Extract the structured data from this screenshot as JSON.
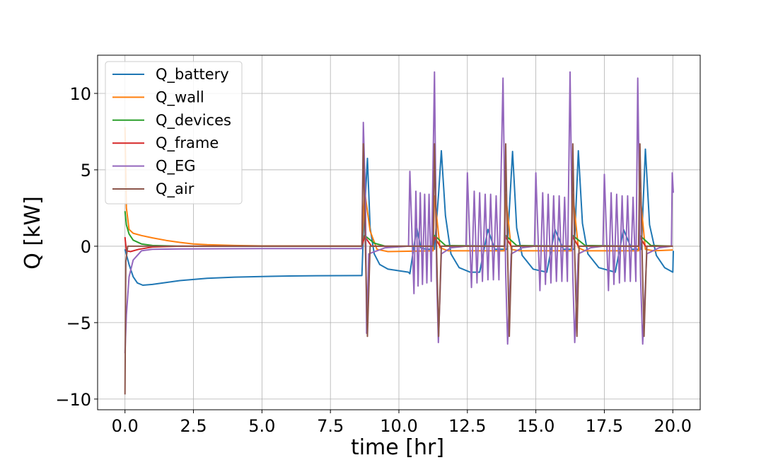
{
  "chart_data": {
    "type": "line",
    "title": "",
    "xlabel": "time [hr]",
    "ylabel": "Q [kW]",
    "xlim": [
      -1.0,
      21.0
    ],
    "ylim": [
      -10.7,
      12.5
    ],
    "xticks": [
      0.0,
      2.5,
      5.0,
      7.5,
      10.0,
      12.5,
      15.0,
      17.5,
      20.0
    ],
    "xtick_labels": [
      "0.0",
      "2.5",
      "5.0",
      "7.5",
      "10.0",
      "12.5",
      "15.0",
      "17.5",
      "20.0"
    ],
    "yticks": [
      -10,
      -5,
      0,
      5,
      10
    ],
    "ytick_labels": [
      "−10",
      "−5",
      "0",
      "5",
      "10"
    ],
    "grid": true,
    "legend_position": "top-left",
    "series": [
      {
        "name": "Q_battery",
        "color": "#1f77b4",
        "points": [
          [
            0.0,
            -0.2
          ],
          [
            0.15,
            -1.2
          ],
          [
            0.3,
            -2.0
          ],
          [
            0.45,
            -2.4
          ],
          [
            0.65,
            -2.55
          ],
          [
            1.0,
            -2.5
          ],
          [
            2.0,
            -2.25
          ],
          [
            3.0,
            -2.1
          ],
          [
            4.0,
            -2.02
          ],
          [
            5.0,
            -1.98
          ],
          [
            6.0,
            -1.95
          ],
          [
            7.0,
            -1.93
          ],
          [
            8.65,
            -1.92
          ],
          [
            8.7,
            0.8
          ],
          [
            8.85,
            5.75
          ],
          [
            8.95,
            1.2
          ],
          [
            9.1,
            -0.5
          ],
          [
            9.3,
            -1.2
          ],
          [
            9.6,
            -1.5
          ],
          [
            10.35,
            -1.7
          ],
          [
            10.4,
            -1.8
          ],
          [
            10.65,
            1.2
          ],
          [
            10.8,
            -0.1
          ],
          [
            11.0,
            -0.2
          ],
          [
            11.3,
            -0.2
          ],
          [
            11.45,
            3.5
          ],
          [
            11.55,
            6.25
          ],
          [
            11.7,
            2.0
          ],
          [
            11.9,
            -0.5
          ],
          [
            12.2,
            -1.4
          ],
          [
            12.6,
            -1.7
          ],
          [
            12.95,
            -1.7
          ],
          [
            13.25,
            1.1
          ],
          [
            13.5,
            -0.2
          ],
          [
            13.95,
            -0.2
          ],
          [
            14.15,
            6.2
          ],
          [
            14.3,
            1.2
          ],
          [
            14.5,
            -0.6
          ],
          [
            14.9,
            -1.5
          ],
          [
            15.4,
            -1.7
          ],
          [
            15.7,
            1.1
          ],
          [
            16.0,
            -0.2
          ],
          [
            16.4,
            -0.2
          ],
          [
            16.55,
            6.25
          ],
          [
            16.7,
            1.5
          ],
          [
            16.9,
            -0.5
          ],
          [
            17.3,
            -1.4
          ],
          [
            17.9,
            -1.7
          ],
          [
            18.2,
            1.1
          ],
          [
            18.5,
            -0.2
          ],
          [
            18.85,
            -0.2
          ],
          [
            19.0,
            6.35
          ],
          [
            19.15,
            1.4
          ],
          [
            19.4,
            -0.6
          ],
          [
            19.7,
            -1.4
          ],
          [
            20.0,
            -1.7
          ],
          [
            20.02,
            -0.3
          ]
        ]
      },
      {
        "name": "Q_wall",
        "color": "#ff7f0e",
        "points": [
          [
            0.0,
            7.8
          ],
          [
            0.05,
            2.5
          ],
          [
            0.15,
            1.1
          ],
          [
            0.3,
            0.85
          ],
          [
            0.6,
            0.7
          ],
          [
            1.0,
            0.55
          ],
          [
            1.5,
            0.38
          ],
          [
            2.0,
            0.25
          ],
          [
            2.5,
            0.15
          ],
          [
            3.0,
            0.1
          ],
          [
            4.0,
            0.05
          ],
          [
            5.0,
            0.02
          ],
          [
            8.65,
            0.0
          ],
          [
            8.75,
            3.6
          ],
          [
            8.95,
            1.0
          ],
          [
            9.2,
            -0.2
          ],
          [
            9.6,
            -0.35
          ],
          [
            11.25,
            -0.3
          ],
          [
            11.3,
            3.3
          ],
          [
            11.5,
            -0.1
          ],
          [
            11.8,
            -0.3
          ],
          [
            13.85,
            -0.3
          ],
          [
            13.9,
            3.4
          ],
          [
            14.1,
            -0.2
          ],
          [
            14.4,
            -0.3
          ],
          [
            16.3,
            -0.3
          ],
          [
            16.35,
            3.4
          ],
          [
            16.55,
            -0.1
          ],
          [
            16.8,
            -0.3
          ],
          [
            18.75,
            -0.3
          ],
          [
            18.8,
            3.5
          ],
          [
            19.0,
            -0.2
          ],
          [
            19.3,
            -0.3
          ],
          [
            20.0,
            -0.25
          ]
        ]
      },
      {
        "name": "Q_devices",
        "color": "#2ca02c",
        "points": [
          [
            0.0,
            2.3
          ],
          [
            0.05,
            1.4
          ],
          [
            0.15,
            0.8
          ],
          [
            0.3,
            0.4
          ],
          [
            0.6,
            0.15
          ],
          [
            1.0,
            0.05
          ],
          [
            2.0,
            0.0
          ],
          [
            8.65,
            0.0
          ],
          [
            8.75,
            0.7
          ],
          [
            9.1,
            0.2
          ],
          [
            9.5,
            0.0
          ],
          [
            11.25,
            0.0
          ],
          [
            11.3,
            0.7
          ],
          [
            11.7,
            0.05
          ],
          [
            13.85,
            0.0
          ],
          [
            13.9,
            0.7
          ],
          [
            14.3,
            0.05
          ],
          [
            16.3,
            0.0
          ],
          [
            16.35,
            0.7
          ],
          [
            16.8,
            0.05
          ],
          [
            18.75,
            0.0
          ],
          [
            18.8,
            0.7
          ],
          [
            19.2,
            0.05
          ],
          [
            20.0,
            0.0
          ]
        ]
      },
      {
        "name": "Q_frame",
        "color": "#d62728",
        "points": [
          [
            0.0,
            0.6
          ],
          [
            0.05,
            -0.3
          ],
          [
            0.2,
            -0.35
          ],
          [
            0.5,
            -0.2
          ],
          [
            1.0,
            -0.05
          ],
          [
            2.0,
            0.0
          ],
          [
            8.65,
            0.0
          ],
          [
            8.75,
            0.65
          ],
          [
            9.0,
            0.0
          ],
          [
            11.25,
            0.0
          ],
          [
            11.3,
            0.6
          ],
          [
            11.5,
            0.0
          ],
          [
            13.85,
            0.0
          ],
          [
            13.9,
            0.6
          ],
          [
            14.1,
            0.0
          ],
          [
            16.3,
            0.0
          ],
          [
            16.35,
            0.6
          ],
          [
            16.55,
            0.0
          ],
          [
            18.75,
            0.0
          ],
          [
            18.8,
            0.6
          ],
          [
            19.0,
            0.0
          ],
          [
            20.0,
            0.0
          ]
        ]
      },
      {
        "name": "Q_EG",
        "color": "#9467bd",
        "points": [
          [
            0.0,
            -7.0
          ],
          [
            0.05,
            -4.5
          ],
          [
            0.15,
            -2.0
          ],
          [
            0.3,
            -0.9
          ],
          [
            0.6,
            -0.3
          ],
          [
            1.0,
            -0.2
          ],
          [
            2.0,
            -0.18
          ],
          [
            5.0,
            -0.15
          ],
          [
            8.65,
            -0.15
          ],
          [
            8.7,
            8.1
          ],
          [
            8.78,
            3.0
          ],
          [
            8.82,
            -5.7
          ],
          [
            8.9,
            -0.5
          ],
          [
            9.5,
            -0.1
          ],
          [
            10.35,
            0.0
          ],
          [
            10.4,
            4.9
          ],
          [
            10.55,
            -3.1
          ],
          [
            10.62,
            3.6
          ],
          [
            10.7,
            -2.6
          ],
          [
            10.78,
            3.5
          ],
          [
            10.86,
            -2.5
          ],
          [
            10.94,
            3.4
          ],
          [
            11.02,
            -2.4
          ],
          [
            11.1,
            3.4
          ],
          [
            11.18,
            -2.3
          ],
          [
            11.3,
            11.4
          ],
          [
            11.38,
            -2.0
          ],
          [
            11.44,
            -6.3
          ],
          [
            11.55,
            -0.5
          ],
          [
            11.9,
            -0.1
          ],
          [
            12.45,
            0.0
          ],
          [
            12.5,
            4.8
          ],
          [
            12.65,
            -2.7
          ],
          [
            12.75,
            3.6
          ],
          [
            12.85,
            -2.4
          ],
          [
            12.95,
            3.5
          ],
          [
            13.05,
            -2.3
          ],
          [
            13.15,
            3.4
          ],
          [
            13.25,
            -2.2
          ],
          [
            13.35,
            3.4
          ],
          [
            13.45,
            -2.2
          ],
          [
            13.55,
            3.3
          ],
          [
            13.65,
            -2.2
          ],
          [
            13.8,
            11.0
          ],
          [
            13.9,
            -1.8
          ],
          [
            13.97,
            -6.4
          ],
          [
            14.1,
            -0.5
          ],
          [
            14.5,
            -0.1
          ],
          [
            14.95,
            0.0
          ],
          [
            15.0,
            4.8
          ],
          [
            15.15,
            -2.9
          ],
          [
            15.25,
            3.5
          ],
          [
            15.35,
            -2.5
          ],
          [
            15.45,
            3.4
          ],
          [
            15.55,
            -2.4
          ],
          [
            15.65,
            3.3
          ],
          [
            15.75,
            -2.3
          ],
          [
            15.85,
            3.3
          ],
          [
            15.95,
            -2.3
          ],
          [
            16.05,
            3.2
          ],
          [
            16.15,
            -2.3
          ],
          [
            16.25,
            11.4
          ],
          [
            16.35,
            -2.0
          ],
          [
            16.42,
            -6.3
          ],
          [
            16.55,
            -0.5
          ],
          [
            17.0,
            -0.1
          ],
          [
            17.45,
            0.0
          ],
          [
            17.5,
            4.7
          ],
          [
            17.65,
            -2.9
          ],
          [
            17.75,
            3.5
          ],
          [
            17.85,
            -2.5
          ],
          [
            17.95,
            3.4
          ],
          [
            18.05,
            -2.4
          ],
          [
            18.15,
            3.3
          ],
          [
            18.25,
            -2.3
          ],
          [
            18.35,
            3.3
          ],
          [
            18.45,
            -2.3
          ],
          [
            18.55,
            3.2
          ],
          [
            18.65,
            -2.3
          ],
          [
            18.72,
            11.0
          ],
          [
            18.82,
            -1.9
          ],
          [
            18.9,
            -6.4
          ],
          [
            19.05,
            -0.5
          ],
          [
            19.5,
            -0.1
          ],
          [
            19.95,
            0.0
          ],
          [
            19.98,
            4.8
          ],
          [
            20.02,
            3.5
          ]
        ]
      },
      {
        "name": "Q_air",
        "color": "#8c564b",
        "points": [
          [
            0.0,
            -9.7
          ],
          [
            0.03,
            -1.0
          ],
          [
            0.1,
            0.0
          ],
          [
            8.65,
            0.0
          ],
          [
            8.7,
            6.7
          ],
          [
            8.78,
            -0.5
          ],
          [
            8.85,
            -5.9
          ],
          [
            8.95,
            0.0
          ],
          [
            11.25,
            0.0
          ],
          [
            11.3,
            6.7
          ],
          [
            11.38,
            -0.5
          ],
          [
            11.45,
            -5.9
          ],
          [
            11.55,
            0.0
          ],
          [
            13.85,
            0.0
          ],
          [
            13.9,
            6.7
          ],
          [
            13.97,
            -0.5
          ],
          [
            14.03,
            -5.9
          ],
          [
            14.12,
            0.0
          ],
          [
            16.3,
            0.0
          ],
          [
            16.35,
            6.7
          ],
          [
            16.42,
            -0.5
          ],
          [
            16.5,
            -5.9
          ],
          [
            16.58,
            0.0
          ],
          [
            18.75,
            0.0
          ],
          [
            18.8,
            6.7
          ],
          [
            18.88,
            -0.5
          ],
          [
            18.95,
            -5.9
          ],
          [
            19.05,
            0.0
          ],
          [
            20.0,
            0.0
          ]
        ]
      }
    ]
  }
}
